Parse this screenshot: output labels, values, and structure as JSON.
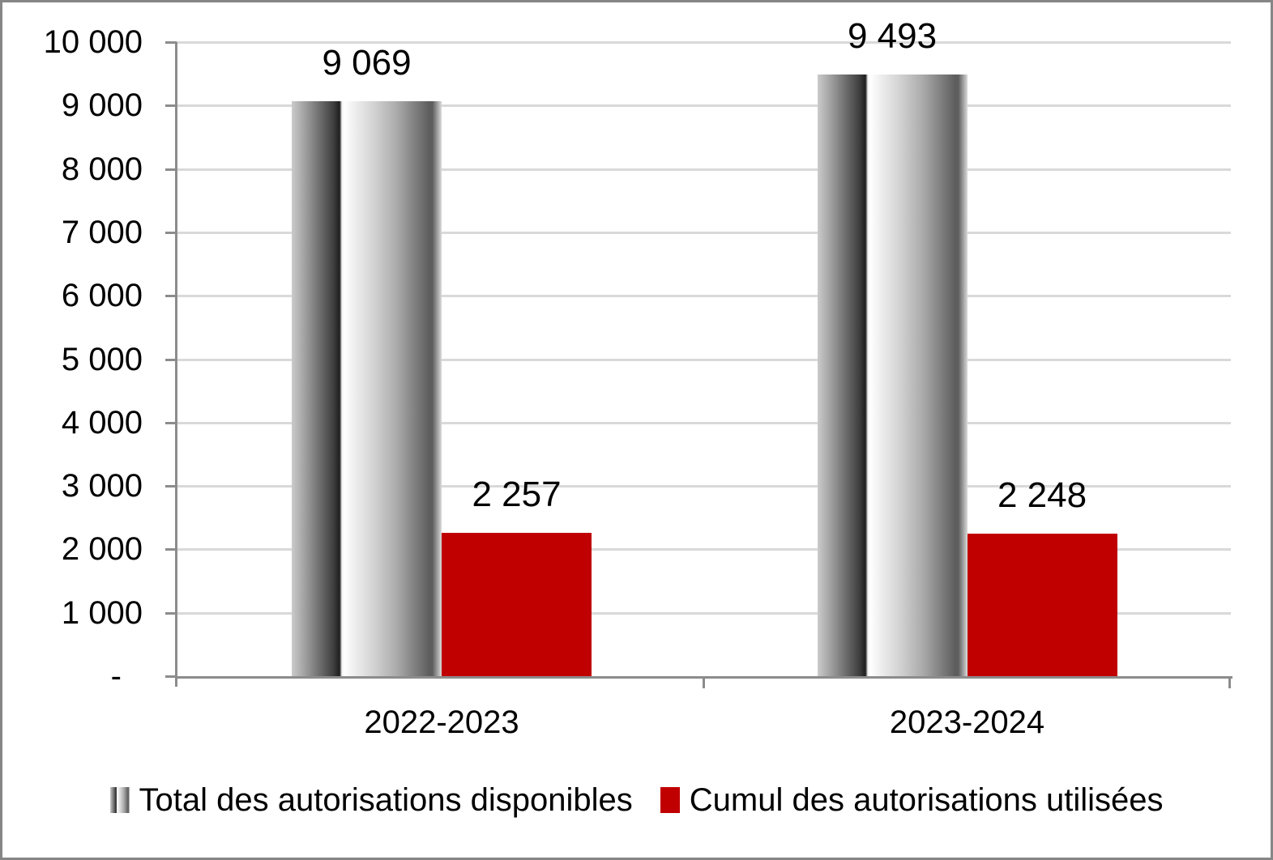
{
  "chart_data": {
    "type": "bar",
    "title": "",
    "categories": [
      "2022-2023",
      "2023-2024"
    ],
    "series": [
      {
        "key": "total-disponibles",
        "name": "Total des autorisations disponibles",
        "values": [
          9069,
          9493
        ],
        "value_labels": [
          "9 069",
          "9 493"
        ],
        "fill": "gray-cylinder-gradient",
        "fill_hint_colors": [
          "#CBCBCB",
          "#1F1F1F",
          "#FFFFFF",
          "#5D5D5D",
          "#DADADA"
        ]
      },
      {
        "key": "cumul-utilisees",
        "name": "Cumul des autorisations utilisées",
        "values": [
          2257,
          2248
        ],
        "value_labels": [
          "2 257",
          "2 248"
        ],
        "fill": "#C00000"
      }
    ],
    "xlabel": "",
    "ylabel": "",
    "ylim": [
      0,
      10000
    ],
    "ytick_interval": 1000,
    "ytick_labels_top_to_bottom": [
      "10 000",
      "9 000",
      "8 000",
      "7 000",
      "6 000",
      "5 000",
      "4 000",
      "3 000",
      "2 000",
      "1 000",
      "-"
    ],
    "grid": "horizontal",
    "legend_position": "bottom"
  },
  "colors": {
    "bar_red": "#C00000",
    "axis": "#8C8C8C",
    "gridline": "#D9D9D9",
    "text": "#000000",
    "frame_border": "#868686",
    "background": "#FFFFFF"
  }
}
